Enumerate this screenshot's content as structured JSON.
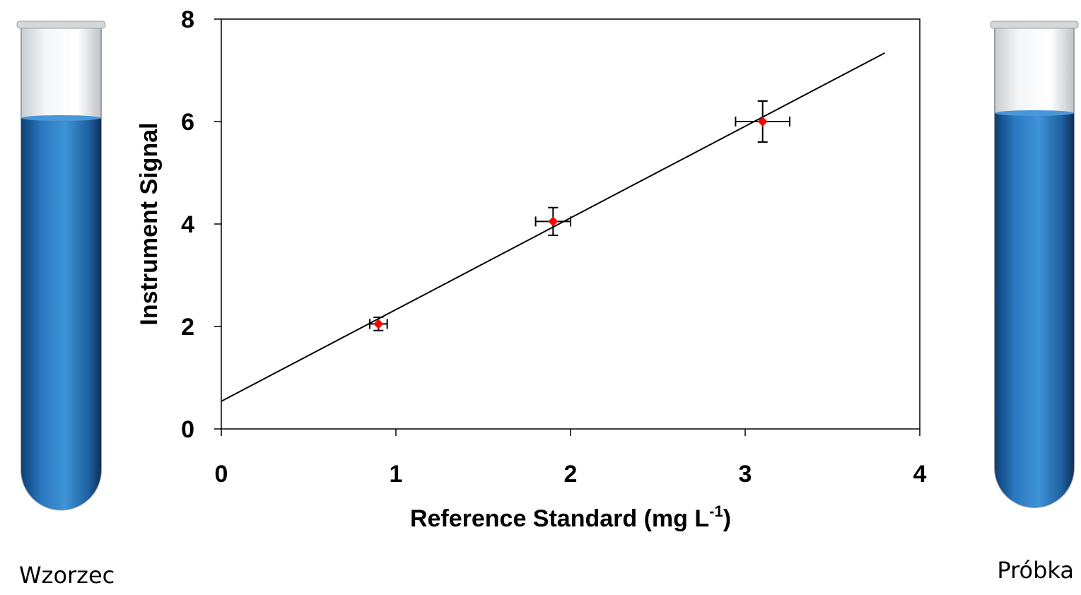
{
  "chart_data": {
    "type": "scatter",
    "xlabel": {
      "text": "Reference Standard (mg L",
      "superscript": "-1",
      "suffix": ")"
    },
    "ylabel": "Instrument Signal",
    "xlim": [
      0,
      4
    ],
    "xticks": [
      0,
      1,
      2,
      3,
      4
    ],
    "ylim": [
      0,
      8
    ],
    "yticks": [
      0,
      2,
      4,
      6,
      8
    ],
    "grid": false,
    "series": [
      {
        "color": "#ff0000",
        "x": [
          0.9,
          1.9,
          3.1
        ],
        "values": [
          2.05,
          4.05,
          6.0
        ],
        "xerr": [
          0.05,
          0.1,
          0.155
        ],
        "yerr": [
          0.13,
          0.27,
          0.4
        ]
      }
    ],
    "fit": {
      "color": "#000000",
      "x": [
        0,
        3.8
      ],
      "values": [
        0.54,
        7.34
      ]
    },
    "annotations": [
      "Wzorzec",
      "Próbka"
    ]
  }
}
